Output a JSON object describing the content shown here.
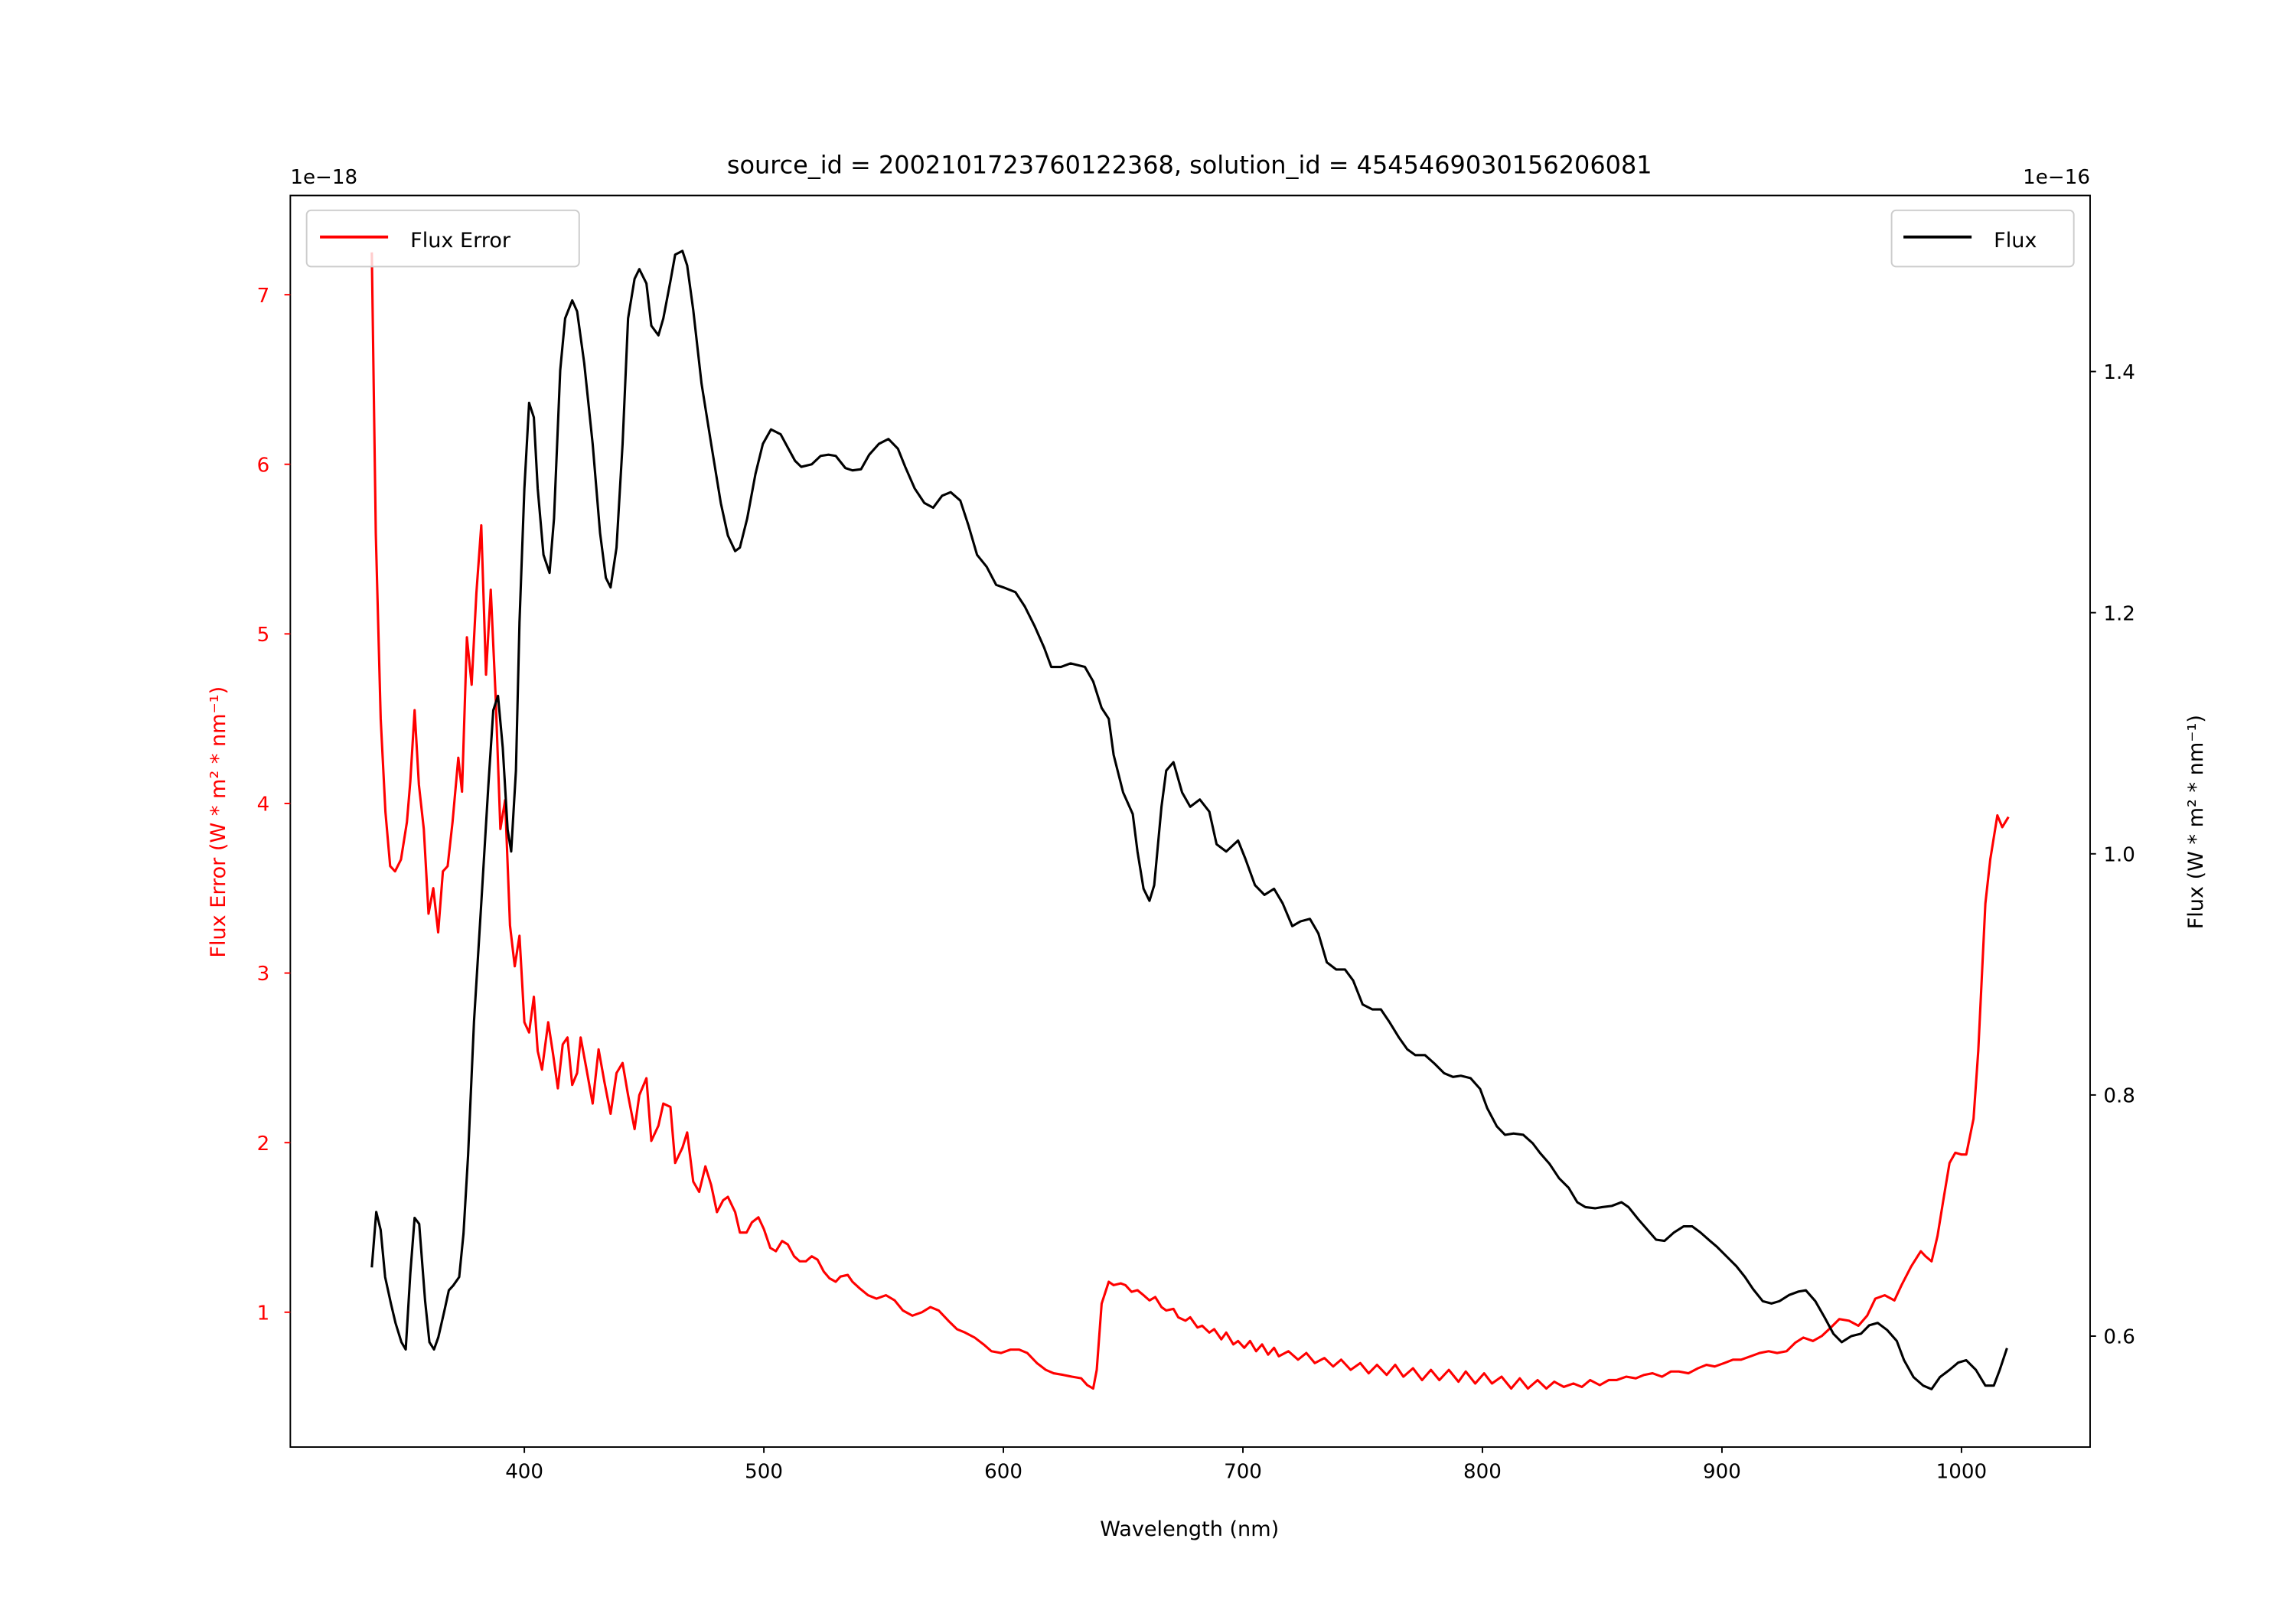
{
  "chart_data": {
    "type": "line",
    "title": "source_id = 2002101723760122368, solution_id = 4545469030156206081",
    "xlabel": "Wavelength (nm)",
    "ylabel_left": "Flux Error (W * m² * nm⁻¹)",
    "ylabel_right": "Flux (W * m² * nm⁻¹)",
    "offset_left": "1e−18",
    "offset_right": "1e−16",
    "xlim": [
      302.3,
      1053.7
    ],
    "ylim_left": [
      0.205,
      7.585
    ],
    "ylim_right": [
      0.508,
      1.546
    ],
    "xticks": [
      400,
      500,
      600,
      700,
      800,
      900,
      1000
    ],
    "yticks_left": [
      1,
      2,
      3,
      4,
      5,
      6,
      7
    ],
    "yticks_right": [
      0.6,
      0.8,
      1.0,
      1.2,
      1.4
    ],
    "grid": false,
    "legends": [
      {
        "label": "Flux Error",
        "placement": "upper-left"
      },
      {
        "label": "Flux",
        "placement": "upper-right"
      }
    ],
    "series": [
      {
        "name": "Flux Error",
        "axis": "left",
        "color": "#ff0000",
        "scale": "1e-18",
        "x": [
          336.3,
          338,
          340,
          342,
          344,
          346,
          348.5,
          351,
          352.4,
          354.2,
          356,
          358,
          360,
          362,
          364,
          366,
          368,
          370,
          372.4,
          374,
          376,
          378,
          380,
          382,
          384,
          386,
          388,
          390,
          392,
          394,
          396,
          398,
          400,
          402,
          404,
          405.6,
          407.4,
          410,
          412,
          414,
          416,
          418,
          420,
          422,
          423.5,
          426,
          428.5,
          431,
          433.4,
          436,
          438.5,
          441,
          443.3,
          446,
          448,
          451,
          453,
          456,
          458,
          461,
          463,
          466,
          468,
          470.5,
          473,
          475.6,
          478,
          480.4,
          483,
          485,
          488,
          490,
          492.8,
          495,
          497.7,
          500,
          502.7,
          505,
          507.6,
          510,
          512.6,
          515,
          517.5,
          520,
          522.4,
          525,
          527.4,
          530,
          532,
          535,
          537,
          540,
          543.5,
          547,
          551,
          554.6,
          558,
          562,
          566,
          569.5,
          573,
          577,
          580.6,
          584,
          588,
          591.7,
          595,
          599,
          603,
          606.5,
          610,
          614,
          617.7,
          621,
          625,
          628.6,
          632.5,
          635,
          637.5,
          639,
          641,
          644,
          646,
          649,
          651,
          653.5,
          656,
          658.5,
          661,
          663.4,
          666,
          668,
          671,
          673,
          676,
          678,
          681,
          683,
          686,
          688,
          691,
          693,
          696,
          698,
          700.6,
          703,
          705.5,
          708,
          710.5,
          713,
          715,
          719,
          723,
          726.5,
          730,
          734,
          737.7,
          741,
          745,
          749,
          752.5,
          756,
          760,
          763.6,
          767,
          771,
          774.8,
          778.5,
          782,
          786,
          790,
          793,
          797,
          800.7,
          804,
          808,
          812,
          815.6,
          819,
          823,
          826.7,
          830,
          834,
          838,
          841.5,
          845,
          849,
          852.7,
          856,
          860,
          864,
          867.5,
          871,
          875,
          878.7,
          882,
          886,
          890,
          893.5,
          897,
          901,
          904.6,
          908,
          912,
          915.7,
          919.5,
          923,
          927,
          930.6,
          934,
          938,
          941.7,
          945.5,
          949,
          953,
          957,
          960.6,
          964,
          968,
          972,
          975,
          979,
          983,
          985,
          987.5,
          990,
          992.4,
          995,
          997.4,
          1000,
          1002,
          1005,
          1007,
          1010,
          1012,
          1015,
          1017,
          1019.6
        ],
        "y": [
          7.25,
          5.59,
          4.5,
          3.95,
          3.63,
          3.6,
          3.67,
          3.89,
          4.13,
          4.55,
          4.11,
          3.85,
          3.35,
          3.5,
          3.24,
          3.6,
          3.63,
          3.89,
          4.27,
          4.07,
          4.98,
          4.7,
          5.24,
          5.64,
          4.76,
          5.26,
          4.63,
          3.85,
          4.02,
          3.28,
          3.04,
          3.22,
          2.71,
          2.65,
          2.86,
          2.54,
          2.43,
          2.71,
          2.52,
          2.32,
          2.58,
          2.62,
          2.34,
          2.41,
          2.62,
          2.43,
          2.23,
          2.55,
          2.36,
          2.17,
          2.41,
          2.47,
          2.28,
          2.08,
          2.28,
          2.38,
          2.01,
          2.1,
          2.23,
          2.21,
          1.88,
          1.97,
          2.06,
          1.77,
          1.71,
          1.86,
          1.75,
          1.59,
          1.66,
          1.68,
          1.59,
          1.47,
          1.47,
          1.53,
          1.56,
          1.49,
          1.38,
          1.36,
          1.42,
          1.4,
          1.33,
          1.3,
          1.3,
          1.33,
          1.31,
          1.24,
          1.2,
          1.18,
          1.21,
          1.22,
          1.18,
          1.14,
          1.1,
          1.08,
          1.1,
          1.07,
          1.01,
          0.98,
          1.0,
          1.03,
          1.01,
          0.95,
          0.9,
          0.88,
          0.85,
          0.81,
          0.77,
          0.76,
          0.78,
          0.78,
          0.76,
          0.7,
          0.66,
          0.64,
          0.63,
          0.62,
          0.61,
          0.57,
          0.55,
          0.66,
          1.05,
          1.18,
          1.16,
          1.17,
          1.16,
          1.12,
          1.13,
          1.1,
          1.07,
          1.09,
          1.03,
          1.01,
          1.02,
          0.97,
          0.95,
          0.97,
          0.91,
          0.92,
          0.88,
          0.9,
          0.84,
          0.88,
          0.81,
          0.83,
          0.79,
          0.83,
          0.77,
          0.81,
          0.75,
          0.79,
          0.74,
          0.77,
          0.72,
          0.76,
          0.7,
          0.73,
          0.68,
          0.72,
          0.66,
          0.7,
          0.64,
          0.69,
          0.63,
          0.69,
          0.62,
          0.67,
          0.6,
          0.66,
          0.6,
          0.66,
          0.59,
          0.65,
          0.58,
          0.64,
          0.58,
          0.62,
          0.55,
          0.61,
          0.55,
          0.6,
          0.55,
          0.59,
          0.56,
          0.58,
          0.56,
          0.6,
          0.57,
          0.6,
          0.6,
          0.62,
          0.61,
          0.63,
          0.64,
          0.62,
          0.65,
          0.65,
          0.64,
          0.67,
          0.69,
          0.68,
          0.7,
          0.72,
          0.72,
          0.74,
          0.76,
          0.77,
          0.76,
          0.77,
          0.82,
          0.85,
          0.83,
          0.86,
          0.91,
          0.96,
          0.95,
          0.92,
          0.98,
          1.08,
          1.1,
          1.07,
          1.16,
          1.27,
          1.36,
          1.33,
          1.3,
          1.45,
          1.66,
          1.88,
          1.94,
          1.93,
          1.93,
          2.14,
          2.54,
          3.41,
          3.67,
          3.93,
          3.86,
          3.92
        ]
      },
      {
        "name": "Flux",
        "axis": "right",
        "color": "#000000",
        "scale": "1e-16",
        "x": [
          336.3,
          338.2,
          340,
          341.9,
          344.3,
          346.2,
          348.7,
          350.5,
          352.4,
          354.2,
          356.1,
          358.6,
          360.4,
          362.3,
          364.1,
          366.6,
          368.5,
          370.3,
          372.8,
          374.6,
          376.5,
          379,
          382,
          385,
          387,
          389,
          391,
          393,
          394.5,
          396.5,
          398,
          400,
          402,
          404,
          405.6,
          408,
          410.5,
          412.4,
          415,
          417,
          420,
          422,
          425,
          428.5,
          431.6,
          434,
          436,
          438.5,
          441,
          443.3,
          446,
          448,
          451,
          453,
          456,
          458,
          461,
          463,
          466,
          468,
          470.5,
          474,
          478,
          482,
          485,
          488,
          490,
          493,
          496.5,
          499.6,
          503,
          507,
          510,
          513,
          515.6,
          520,
          523.7,
          527,
          530,
          534,
          537,
          540.6,
          544,
          548,
          552,
          556,
          559,
          563,
          567,
          570.7,
          574.4,
          578,
          582,
          585.5,
          589,
          593,
          597,
          600,
          605,
          609,
          613,
          617,
          620,
          624,
          628,
          634,
          637.5,
          641,
          644,
          646,
          650,
          654,
          656,
          658.5,
          661,
          663,
          666,
          668,
          671,
          674.6,
          678,
          682,
          686,
          689,
          693,
          698,
          701,
          705,
          709,
          713,
          716.6,
          720.6,
          724,
          728,
          731.5,
          735,
          739,
          742.6,
          746,
          750,
          754,
          757.6,
          761,
          765,
          768.6,
          772,
          776,
          780,
          784,
          787.7,
          791,
          795,
          799,
          802,
          806,
          809.4,
          813,
          817,
          821,
          824,
          828,
          832,
          836,
          839.6,
          843,
          847,
          850,
          854,
          858,
          861,
          865,
          869,
          872.5,
          876,
          880,
          884,
          887.6,
          891,
          895,
          898,
          902,
          906,
          909.6,
          913,
          917,
          920.7,
          924,
          928,
          932,
          935,
          939,
          943,
          946.5,
          950,
          954,
          958,
          961.5,
          965,
          969,
          973,
          976,
          980,
          984,
          987.5,
          991,
          995,
          998.6,
          1002,
          1006,
          1010,
          1013.5,
          1016,
          1019
        ],
        "y": [
          0.657,
          0.703,
          0.688,
          0.649,
          0.627,
          0.611,
          0.595,
          0.589,
          0.652,
          0.698,
          0.693,
          0.629,
          0.595,
          0.589,
          0.599,
          0.621,
          0.638,
          0.642,
          0.649,
          0.685,
          0.75,
          0.861,
          0.959,
          1.057,
          1.119,
          1.131,
          1.088,
          1.02,
          1.002,
          1.069,
          1.192,
          1.303,
          1.374,
          1.362,
          1.303,
          1.248,
          1.233,
          1.278,
          1.401,
          1.444,
          1.459,
          1.45,
          1.407,
          1.34,
          1.266,
          1.229,
          1.221,
          1.254,
          1.34,
          1.444,
          1.477,
          1.485,
          1.473,
          1.438,
          1.43,
          1.444,
          1.475,
          1.497,
          1.5,
          1.488,
          1.451,
          1.39,
          1.34,
          1.291,
          1.264,
          1.251,
          1.254,
          1.278,
          1.315,
          1.34,
          1.352,
          1.348,
          1.337,
          1.326,
          1.321,
          1.323,
          1.33,
          1.331,
          1.33,
          1.32,
          1.318,
          1.319,
          1.331,
          1.34,
          1.344,
          1.336,
          1.321,
          1.303,
          1.291,
          1.287,
          1.297,
          1.3,
          1.293,
          1.272,
          1.248,
          1.238,
          1.223,
          1.221,
          1.217,
          1.205,
          1.189,
          1.171,
          1.155,
          1.155,
          1.158,
          1.155,
          1.143,
          1.121,
          1.112,
          1.082,
          1.051,
          1.033,
          1.002,
          0.971,
          0.961,
          0.974,
          1.039,
          1.069,
          1.076,
          1.051,
          1.039,
          1.045,
          1.035,
          1.008,
          1.002,
          1.011,
          0.996,
          0.974,
          0.966,
          0.971,
          0.959,
          0.94,
          0.944,
          0.946,
          0.934,
          0.91,
          0.904,
          0.904,
          0.895,
          0.875,
          0.871,
          0.871,
          0.861,
          0.848,
          0.838,
          0.833,
          0.833,
          0.826,
          0.818,
          0.815,
          0.816,
          0.814,
          0.805,
          0.789,
          0.774,
          0.767,
          0.768,
          0.767,
          0.76,
          0.752,
          0.743,
          0.731,
          0.723,
          0.711,
          0.707,
          0.706,
          0.707,
          0.708,
          0.711,
          0.707,
          0.697,
          0.688,
          0.68,
          0.679,
          0.686,
          0.691,
          0.691,
          0.686,
          0.679,
          0.674,
          0.666,
          0.658,
          0.649,
          0.639,
          0.629,
          0.627,
          0.629,
          0.634,
          0.637,
          0.638,
          0.629,
          0.615,
          0.602,
          0.595,
          0.6,
          0.602,
          0.609,
          0.611,
          0.605,
          0.596,
          0.58,
          0.566,
          0.559,
          0.556,
          0.566,
          0.572,
          0.578,
          0.58,
          0.572,
          0.559,
          0.559,
          0.572,
          0.59
        ]
      }
    ]
  }
}
